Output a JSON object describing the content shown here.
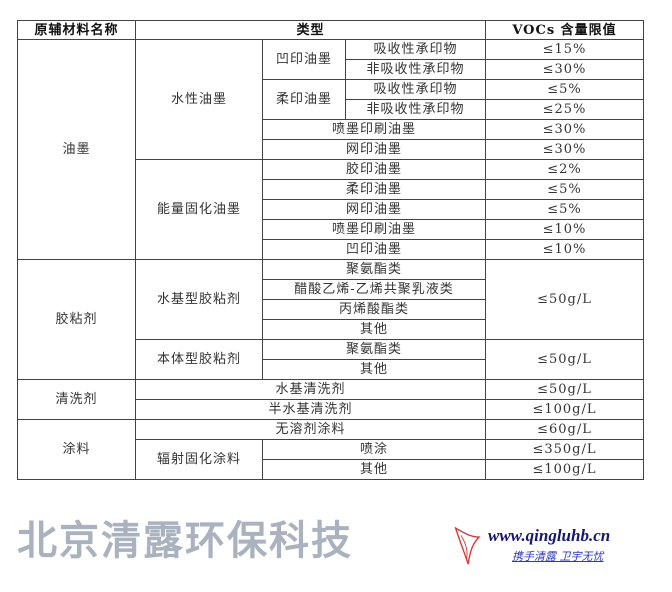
{
  "header": {
    "col1": "原辅材料名称",
    "col2": "类型",
    "col3": "VOCs 含量限值"
  },
  "ink": {
    "name": "油墨",
    "water": {
      "name": "水性油墨",
      "gravure": "凹印油墨",
      "flexo": "柔印油墨",
      "absorb": "吸收性承印物",
      "nonabsorb": "非吸收性承印物",
      "inkjet": "喷墨印刷油墨",
      "screen": "网印油墨",
      "v": [
        "≤15%",
        "≤30%",
        "≤5%",
        "≤25%",
        "≤30%",
        "≤30%"
      ]
    },
    "energy": {
      "name": "能量固化油墨",
      "items": [
        "胶印油墨",
        "柔印油墨",
        "网印油墨",
        "喷墨印刷油墨",
        "凹印油墨"
      ],
      "v": [
        "≤2%",
        "≤5%",
        "≤5%",
        "≤10%",
        "≤10%"
      ]
    }
  },
  "adhesive": {
    "name": "胶粘剂",
    "water": {
      "name": "水基型胶粘剂",
      "items": [
        "聚氨酯类",
        "醋酸乙烯-乙烯共聚乳液类",
        "丙烯酸酯类",
        "其他"
      ],
      "v": "≤50g/L"
    },
    "bulk": {
      "name": "本体型胶粘剂",
      "items": [
        "聚氨酯类",
        "其他"
      ],
      "v": "≤50g/L"
    }
  },
  "cleaner": {
    "name": "清洗剂",
    "items": [
      "水基清洗剂",
      "半水基清洗剂"
    ],
    "v": [
      "≤50g/L",
      "≤100g/L"
    ]
  },
  "coating": {
    "name": "涂料",
    "solventless": "无溶剂涂料",
    "solventless_v": "≤60g/L",
    "radiation": "辐射固化涂料",
    "items": [
      "喷涂",
      "其他"
    ],
    "v": [
      "≤350g/L",
      "≤100g/L"
    ]
  },
  "watermark": "北京清露环保科技",
  "logo": {
    "url": "www.qingluhb.cn",
    "slogan": "携手清露 卫宇无忧"
  }
}
